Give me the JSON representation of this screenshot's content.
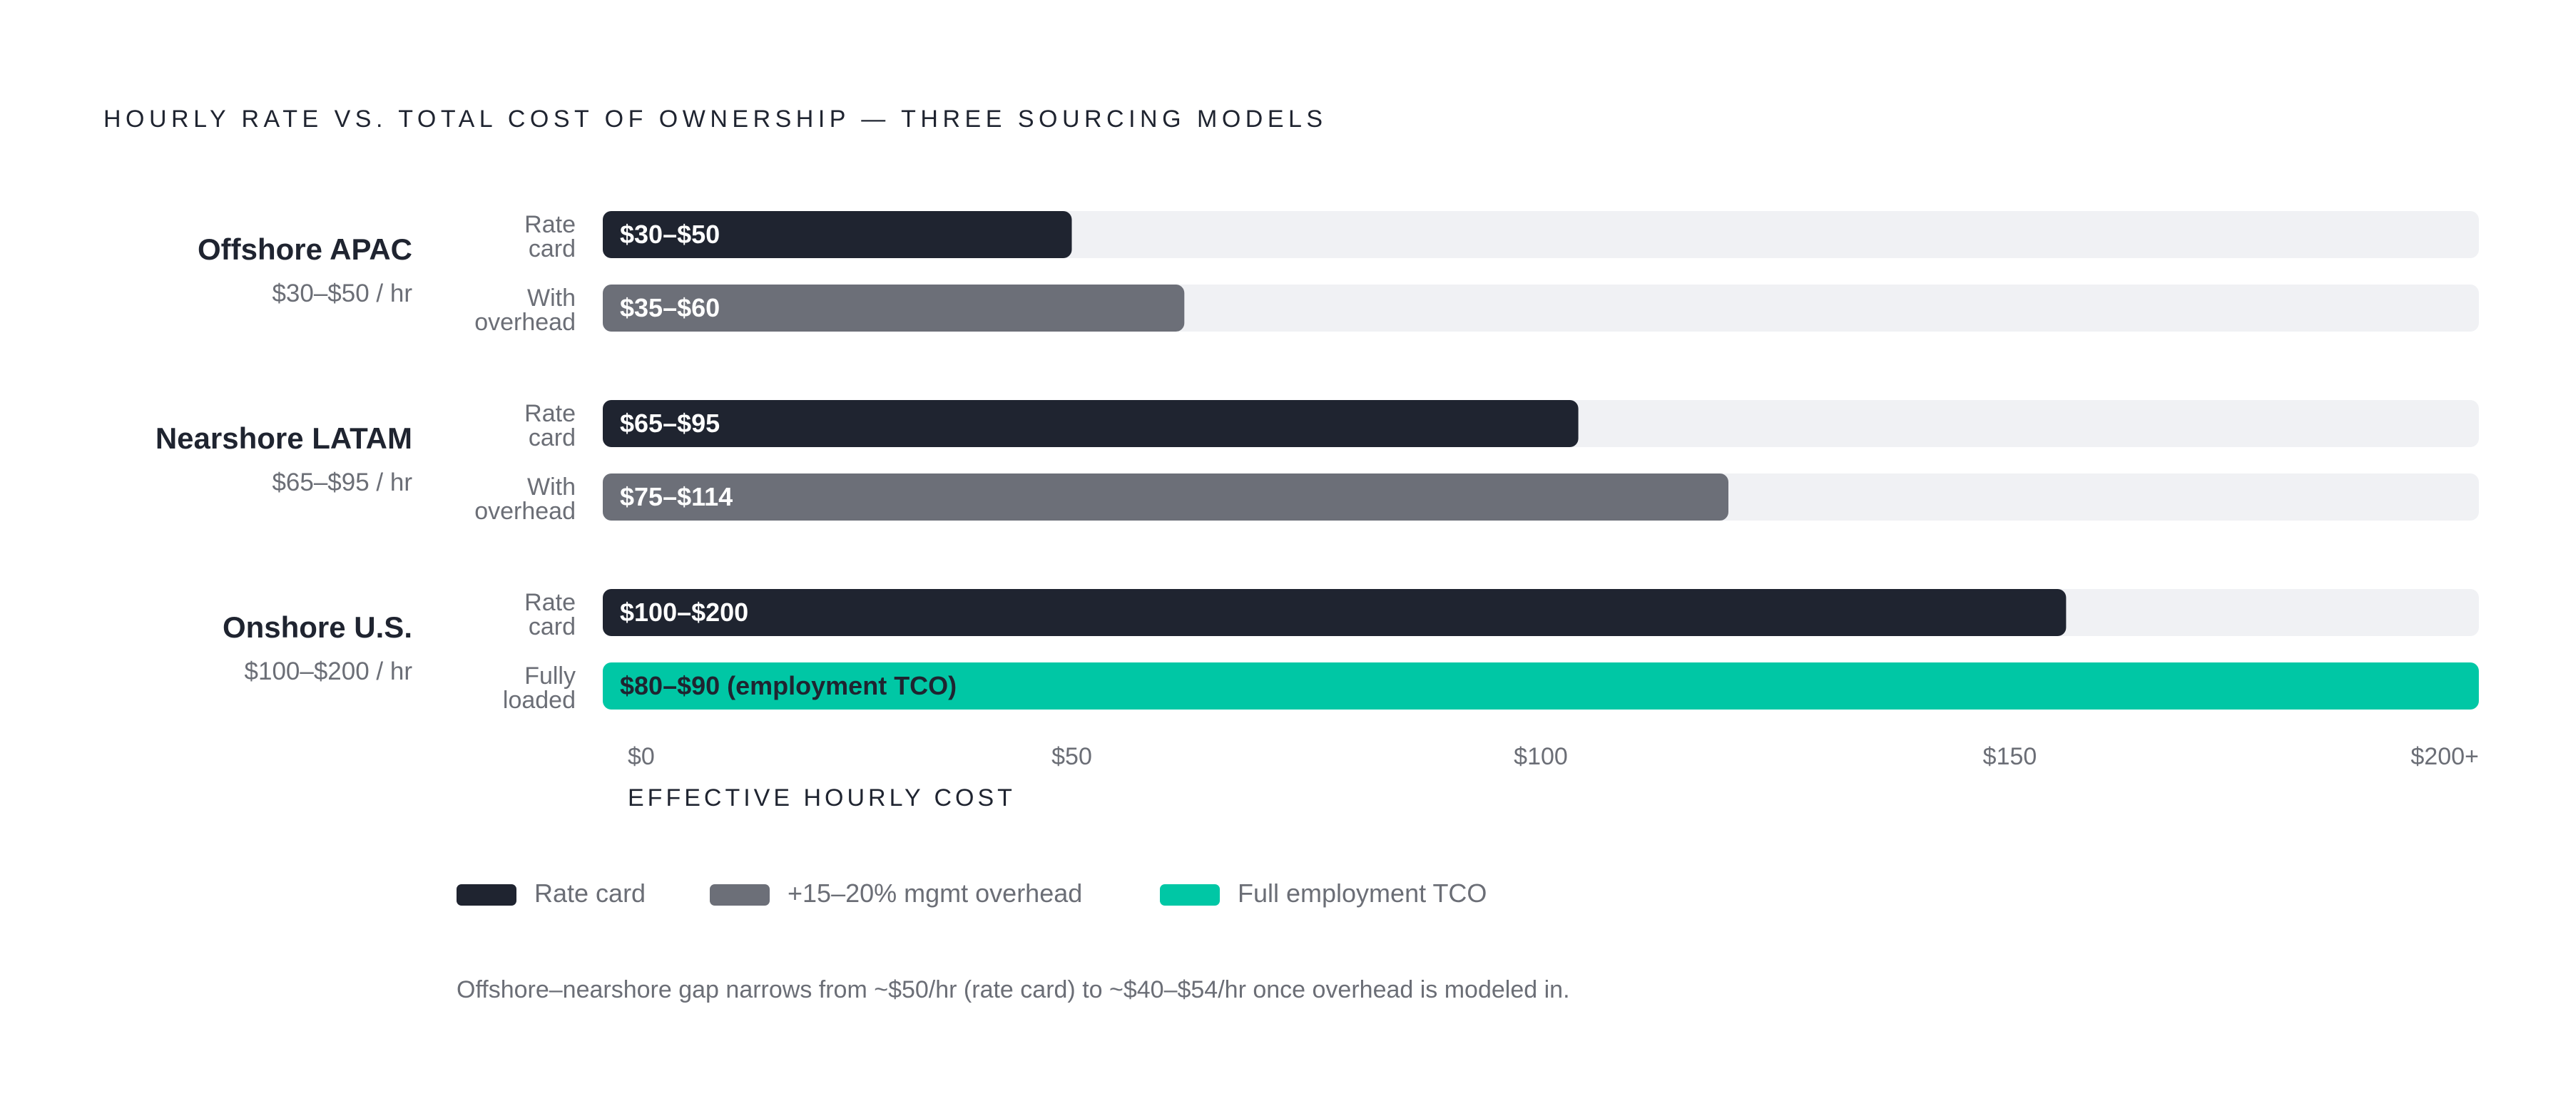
{
  "chart_data": {
    "type": "bar",
    "title": "HOURLY RATE VS. TOTAL COST OF OWNERSHIP — THREE SOURCING MODELS",
    "xlabel": "EFFECTIVE HOURLY COST",
    "ylabel": "",
    "xlim": [
      0,
      200
    ],
    "x_ticks": [
      {
        "value": 0,
        "label": "$0"
      },
      {
        "value": 50,
        "label": "$50"
      },
      {
        "value": 100,
        "label": "$100"
      },
      {
        "value": 150,
        "label": "$150"
      },
      {
        "value": 200,
        "label": "$200+"
      }
    ],
    "groups": [
      {
        "name": "Offshore APAC",
        "subtitle": "$30–$50 / hr",
        "bars": [
          {
            "row_label": [
              "Rate",
              "card"
            ],
            "value_label": "$30–$50",
            "low": 30,
            "high": 50,
            "value": 50,
            "kind": "rate"
          },
          {
            "row_label": [
              "With",
              "overhead"
            ],
            "value_label": "$35–$60",
            "low": 35,
            "high": 60,
            "value": 62,
            "kind": "overhead"
          }
        ]
      },
      {
        "name": "Nearshore LATAM",
        "subtitle": "$65–$95 / hr",
        "bars": [
          {
            "row_label": [
              "Rate",
              "card"
            ],
            "value_label": "$65–$95",
            "low": 65,
            "high": 95,
            "value": 104,
            "kind": "rate"
          },
          {
            "row_label": [
              "With",
              "overhead"
            ],
            "value_label": "$75–$114",
            "low": 75,
            "high": 114,
            "value": 120,
            "kind": "overhead"
          }
        ]
      },
      {
        "name": "Onshore U.S.",
        "subtitle": "$100–$200 / hr",
        "bars": [
          {
            "row_label": [
              "Rate",
              "card"
            ],
            "value_label": "$100–$200",
            "low": 100,
            "high": 200,
            "value": 156,
            "kind": "rate"
          },
          {
            "row_label": [
              "Fully",
              "loaded"
            ],
            "value_label": "$80–$90 (employment TCO)",
            "low": 80,
            "high": 90,
            "value": 200,
            "kind": "tco"
          }
        ]
      }
    ],
    "legend": [
      {
        "label": "Rate card",
        "kind": "rate"
      },
      {
        "label": "+15–20% mgmt overhead",
        "kind": "overhead"
      },
      {
        "label": "Full employment TCO",
        "kind": "tco"
      }
    ],
    "legend_placement": "bottom-left",
    "footnote": "Offshore–nearshore gap narrows from ~$50/hr (rate card) to ~$40–$54/hr once overhead is modeled in.",
    "grid": false,
    "colors": {
      "rate": "#1f2430",
      "overhead": "#6c6f78",
      "tco": "#00c7a5",
      "track": "#f0f1f4",
      "title_text": "#1f2430",
      "muted_text": "#6b6e76",
      "bar_text_light": "#ffffff",
      "bar_text_dark": "#1f2430"
    }
  }
}
